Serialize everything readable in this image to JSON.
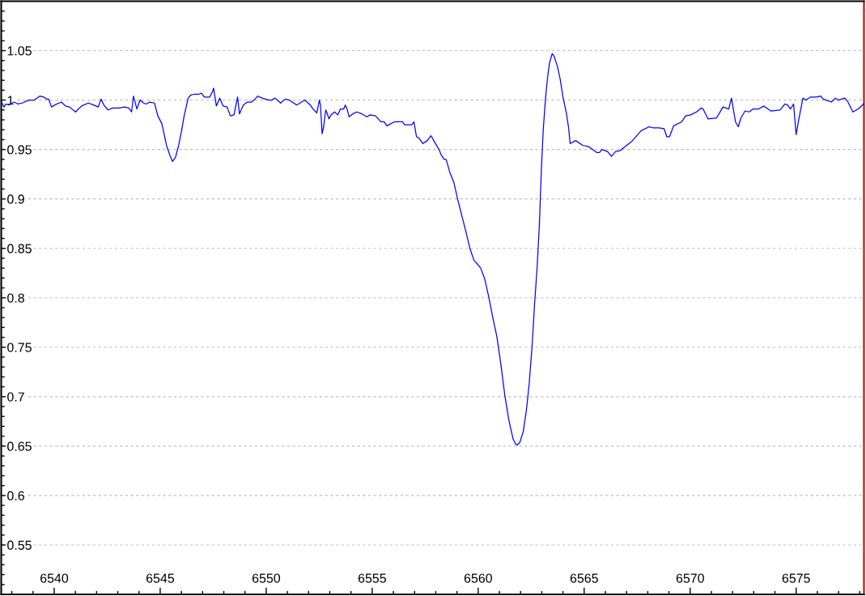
{
  "chart_data": {
    "type": "line",
    "x": [
      6537.54,
      6537.63,
      6537.73,
      6537.85,
      6538.11,
      6538.3,
      6538.49,
      6538.81,
      6539.06,
      6539.32,
      6539.51,
      6539.64,
      6539.74,
      6539.87,
      6540.02,
      6540.34,
      6540.53,
      6540.72,
      6541.01,
      6541.29,
      6541.61,
      6541.86,
      6542.08,
      6542.21,
      6542.37,
      6542.54,
      6542.75,
      6543.07,
      6543.32,
      6543.52,
      6543.65,
      6543.74,
      6543.9,
      6544.05,
      6544.22,
      6544.34,
      6544.51,
      6544.73,
      6544.89,
      6545.08,
      6545.3,
      6545.46,
      6545.58,
      6545.72,
      6545.87,
      6546.0,
      6546.13,
      6546.32,
      6546.44,
      6546.63,
      6546.82,
      6546.95,
      6547.08,
      6547.33,
      6547.46,
      6547.52,
      6547.65,
      6547.81,
      6547.97,
      6548.16,
      6548.31,
      6548.48,
      6548.65,
      6548.74,
      6548.92,
      6549.11,
      6549.31,
      6549.43,
      6549.6,
      6549.81,
      6550.13,
      6550.26,
      6550.42,
      6550.68,
      6550.9,
      6551.09,
      6551.44,
      6551.82,
      6552.08,
      6552.21,
      6552.39,
      6552.51,
      6552.56,
      6552.64,
      6552.71,
      6552.81,
      6552.87,
      6552.96,
      6553.06,
      6553.23,
      6553.38,
      6553.5,
      6553.66,
      6553.73,
      6553.82,
      6553.91,
      6554.08,
      6554.27,
      6554.52,
      6554.75,
      6554.9,
      6555.16,
      6555.41,
      6555.56,
      6555.69,
      6556.05,
      6556.43,
      6556.53,
      6556.87,
      6556.97,
      6557.09,
      6557.19,
      6557.39,
      6557.6,
      6557.77,
      6557.96,
      6558.15,
      6558.27,
      6558.4,
      6558.49,
      6558.66,
      6558.85,
      6559.04,
      6559.23,
      6559.42,
      6559.61,
      6559.8,
      6559.97,
      6560.12,
      6560.31,
      6560.5,
      6560.69,
      6560.88,
      6561.07,
      6561.26,
      6561.45,
      6561.65,
      6561.77,
      6561.85,
      6561.97,
      6562.13,
      6562.28,
      6562.41,
      6562.54,
      6562.66,
      6562.79,
      6562.89,
      6562.98,
      6563.07,
      6563.17,
      6563.27,
      6563.36,
      6563.49,
      6563.59,
      6563.74,
      6563.87,
      6564.0,
      6564.16,
      6564.26,
      6564.34,
      6564.6,
      6564.95,
      6565.21,
      6565.59,
      6565.72,
      6565.84,
      6566.1,
      6566.29,
      6566.48,
      6566.71,
      6566.93,
      6567.24,
      6567.69,
      6568.07,
      6568.24,
      6568.52,
      6568.77,
      6568.9,
      6569.03,
      6569.22,
      6569.6,
      6569.79,
      6570.02,
      6570.3,
      6570.53,
      6570.61,
      6570.84,
      6571.25,
      6571.55,
      6571.82,
      6571.95,
      6572.14,
      6572.27,
      6572.4,
      6572.59,
      6572.78,
      6572.97,
      6573.23,
      6573.48,
      6573.8,
      6574.24,
      6574.47,
      6574.6,
      6574.73,
      6574.88,
      6575.0,
      6575.13,
      6575.32,
      6575.45,
      6575.67,
      6575.96,
      6576.15,
      6576.28,
      6576.66,
      6576.85,
      6576.98,
      6577.29,
      6577.42,
      6577.68,
      6577.93,
      6578.18
    ],
    "series": [
      {
        "color": "#0000ff",
        "values": [
          0.997,
          0.993,
          0.996,
          0.995,
          0.998,
          0.996,
          0.997,
          1.0,
          1.0,
          1.004,
          1.003,
          1.001,
          1.001,
          0.993,
          0.995,
          0.998,
          0.994,
          0.993,
          0.988,
          0.994,
          0.997,
          0.995,
          0.993,
          1.001,
          0.994,
          0.99,
          0.992,
          0.992,
          0.993,
          0.992,
          0.988,
          1.004,
          0.991,
          1.0,
          0.997,
          0.996,
          0.998,
          0.997,
          0.984,
          0.976,
          0.954,
          0.944,
          0.938,
          0.942,
          0.954,
          0.968,
          0.984,
          1.002,
          1.005,
          1.006,
          1.006,
          1.007,
          1.003,
          1.003,
          1.008,
          1.012,
          0.994,
          1.002,
          0.994,
          0.993,
          0.984,
          0.985,
          1.003,
          0.986,
          0.995,
          0.998,
          0.998,
          1.0,
          1.004,
          1.002,
          1.0,
          1.0,
          1.002,
          0.997,
          1.001,
          1.0,
          0.995,
          1.0,
          0.995,
          0.991,
          0.987,
          1.0,
          0.995,
          0.966,
          0.973,
          0.99,
          0.987,
          0.981,
          0.985,
          0.988,
          0.985,
          0.991,
          0.991,
          0.995,
          0.991,
          0.983,
          0.986,
          0.988,
          0.986,
          0.983,
          0.985,
          0.984,
          0.978,
          0.978,
          0.974,
          0.978,
          0.978,
          0.975,
          0.975,
          0.978,
          0.963,
          0.962,
          0.956,
          0.959,
          0.964,
          0.957,
          0.95,
          0.944,
          0.94,
          0.94,
          0.927,
          0.917,
          0.899,
          0.883,
          0.867,
          0.85,
          0.838,
          0.834,
          0.83,
          0.819,
          0.801,
          0.78,
          0.761,
          0.733,
          0.701,
          0.676,
          0.657,
          0.652,
          0.651,
          0.654,
          0.665,
          0.687,
          0.714,
          0.75,
          0.793,
          0.834,
          0.875,
          0.929,
          0.97,
          1.0,
          1.022,
          1.037,
          1.047,
          1.044,
          1.034,
          1.021,
          1.003,
          0.987,
          0.973,
          0.956,
          0.959,
          0.954,
          0.953,
          0.947,
          0.947,
          0.95,
          0.948,
          0.943,
          0.948,
          0.949,
          0.953,
          0.958,
          0.969,
          0.973,
          0.972,
          0.972,
          0.971,
          0.963,
          0.963,
          0.974,
          0.978,
          0.984,
          0.985,
          0.988,
          0.992,
          0.991,
          0.981,
          0.982,
          0.993,
          0.991,
          1.002,
          0.978,
          0.973,
          0.982,
          0.989,
          0.988,
          0.991,
          0.991,
          0.994,
          0.989,
          0.99,
          0.996,
          0.995,
          0.991,
          0.996,
          0.965,
          0.981,
          1.002,
          1.0,
          1.003,
          1.003,
          1.004,
          1.001,
          0.998,
          1.002,
          1.0,
          1.002,
          0.999,
          0.988,
          0.991,
          0.996
        ]
      }
    ],
    "xlim": [
      6537.5,
      6578.2
    ],
    "ylim": [
      0.5,
      1.1
    ],
    "xticks": [
      {
        "value": 6538,
        "label": null
      },
      {
        "value": 6539,
        "label": null
      },
      6540,
      {
        "value": 6541,
        "label": null
      },
      {
        "value": 6542,
        "label": null
      },
      {
        "value": 6543,
        "label": null
      },
      {
        "value": 6544,
        "label": null
      },
      6545,
      {
        "value": 6546,
        "label": null
      },
      {
        "value": 6547,
        "label": null
      },
      {
        "value": 6548,
        "label": null
      },
      {
        "value": 6549,
        "label": null
      },
      6550,
      {
        "value": 6551,
        "label": null
      },
      {
        "value": 6552,
        "label": null
      },
      {
        "value": 6553,
        "label": null
      },
      {
        "value": 6554,
        "label": null
      },
      6555,
      {
        "value": 6556,
        "label": null
      },
      {
        "value": 6557,
        "label": null
      },
      {
        "value": 6558,
        "label": null
      },
      {
        "value": 6559,
        "label": null
      },
      6560,
      {
        "value": 6561,
        "label": null
      },
      {
        "value": 6562,
        "label": null
      },
      {
        "value": 6563,
        "label": null
      },
      {
        "value": 6564,
        "label": null
      },
      6565,
      {
        "value": 6566,
        "label": null
      },
      {
        "value": 6567,
        "label": null
      },
      {
        "value": 6568,
        "label": null
      },
      {
        "value": 6569,
        "label": null
      },
      6570,
      {
        "value": 6571,
        "label": null
      },
      {
        "value": 6572,
        "label": null
      },
      {
        "value": 6573,
        "label": null
      },
      {
        "value": 6574,
        "label": null
      },
      6575,
      {
        "value": 6576,
        "label": null
      },
      {
        "value": 6577,
        "label": null
      },
      {
        "value": 6578,
        "label": null
      }
    ],
    "yticks": [
      {
        "value": 0.51,
        "label": null
      },
      {
        "value": 0.52,
        "label": null
      },
      {
        "value": 0.53,
        "label": null
      },
      {
        "value": 0.54,
        "label": null
      },
      0.55,
      {
        "value": 0.56,
        "label": null
      },
      {
        "value": 0.57,
        "label": null
      },
      {
        "value": 0.58,
        "label": null
      },
      {
        "value": 0.59,
        "label": null
      },
      0.6,
      {
        "value": 0.61,
        "label": null
      },
      {
        "value": 0.62,
        "label": null
      },
      {
        "value": 0.63,
        "label": null
      },
      {
        "value": 0.64,
        "label": null
      },
      0.65,
      {
        "value": 0.66,
        "label": null
      },
      {
        "value": 0.67,
        "label": null
      },
      {
        "value": 0.68,
        "label": null
      },
      {
        "value": 0.69,
        "label": null
      },
      0.7,
      {
        "value": 0.71,
        "label": null
      },
      {
        "value": 0.72,
        "label": null
      },
      {
        "value": 0.73,
        "label": null
      },
      {
        "value": 0.74,
        "label": null
      },
      0.75,
      {
        "value": 0.76,
        "label": null
      },
      {
        "value": 0.77,
        "label": null
      },
      {
        "value": 0.78,
        "label": null
      },
      {
        "value": 0.79,
        "label": null
      },
      0.8,
      {
        "value": 0.81,
        "label": null
      },
      {
        "value": 0.82,
        "label": null
      },
      {
        "value": 0.83,
        "label": null
      },
      {
        "value": 0.84,
        "label": null
      },
      0.85,
      {
        "value": 0.86,
        "label": null
      },
      {
        "value": 0.87,
        "label": null
      },
      {
        "value": 0.88,
        "label": null
      },
      {
        "value": 0.89,
        "label": null
      },
      0.9,
      {
        "value": 0.91,
        "label": null
      },
      {
        "value": 0.92,
        "label": null
      },
      {
        "value": 0.93,
        "label": null
      },
      {
        "value": 0.94,
        "label": null
      },
      0.95,
      {
        "value": 0.96,
        "label": null
      },
      {
        "value": 0.97,
        "label": null
      },
      {
        "value": 0.98,
        "label": null
      },
      {
        "value": 0.99,
        "label": null
      },
      1,
      {
        "value": 1.01,
        "label": null
      },
      {
        "value": 1.02,
        "label": null
      },
      {
        "value": 1.03,
        "label": null
      },
      {
        "value": 1.04,
        "label": null
      },
      1.05,
      {
        "value": 1.06,
        "label": null
      },
      {
        "value": 1.07,
        "label": null
      },
      {
        "value": 1.08,
        "label": null
      },
      {
        "value": 1.09,
        "label": null
      }
    ],
    "grid": "y",
    "line_style": "solid"
  }
}
